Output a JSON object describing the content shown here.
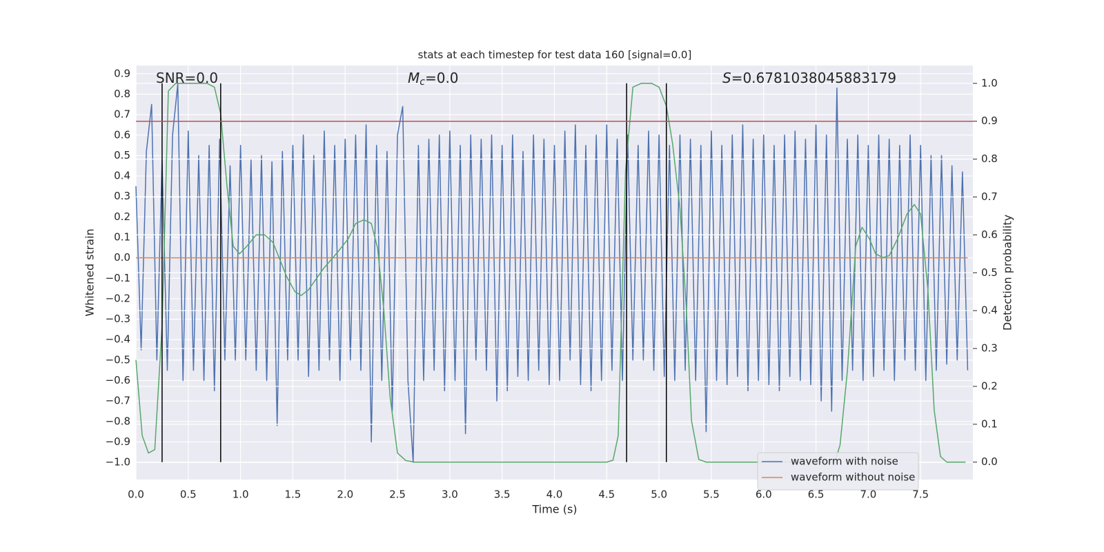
{
  "chart_data": {
    "type": "line",
    "title": "stats at each timestep for test data 160 [signal=0.0]",
    "xlabel": "Time (s)",
    "ylabel": "Whitened strain",
    "y2label": "Detection probability",
    "xlim": [
      0,
      8.0
    ],
    "ylim": [
      -1.084,
      0.94
    ],
    "y2lim": [
      -0.046,
      1.047
    ],
    "grid": true,
    "background": "#eaeaf2",
    "legend": "lower right",
    "xticks": [
      {
        "value": 0,
        "label": "0.0"
      },
      {
        "value": 0.5,
        "label": "0.5"
      },
      {
        "value": 1,
        "label": "1.0"
      },
      {
        "value": 1.5,
        "label": "1.5"
      },
      {
        "value": 2,
        "label": "2.0"
      },
      {
        "value": 2.5,
        "label": "2.5"
      },
      {
        "value": 3,
        "label": "3.0"
      },
      {
        "value": 3.5,
        "label": "3.5"
      },
      {
        "value": 4,
        "label": "4.0"
      },
      {
        "value": 4.5,
        "label": "4.5"
      },
      {
        "value": 5,
        "label": "5.0"
      },
      {
        "value": 5.5,
        "label": "5.5"
      },
      {
        "value": 6,
        "label": "6.0"
      },
      {
        "value": 6.5,
        "label": "6.5"
      },
      {
        "value": 7,
        "label": "7.0"
      },
      {
        "value": 7.5,
        "label": "7.5"
      }
    ],
    "yticks": [
      {
        "value": -1,
        "label": "−1.0"
      },
      {
        "value": -0.9,
        "label": "−0.9"
      },
      {
        "value": -0.8,
        "label": "−0.8"
      },
      {
        "value": -0.7,
        "label": "−0.7"
      },
      {
        "value": -0.6,
        "label": "−0.6"
      },
      {
        "value": -0.5,
        "label": "−0.5"
      },
      {
        "value": -0.4,
        "label": "−0.4"
      },
      {
        "value": -0.3,
        "label": "−0.3"
      },
      {
        "value": -0.2,
        "label": "−0.2"
      },
      {
        "value": -0.1,
        "label": "−0.1"
      },
      {
        "value": 0,
        "label": "0.0"
      },
      {
        "value": 0.1,
        "label": "0.1"
      },
      {
        "value": 0.2,
        "label": "0.2"
      },
      {
        "value": 0.3,
        "label": "0.3"
      },
      {
        "value": 0.4,
        "label": "0.4"
      },
      {
        "value": 0.5,
        "label": "0.5"
      },
      {
        "value": 0.6,
        "label": "0.6"
      },
      {
        "value": 0.7,
        "label": "0.7"
      },
      {
        "value": 0.8,
        "label": "0.8"
      },
      {
        "value": 0.9,
        "label": "0.9"
      }
    ],
    "y2ticks": [
      {
        "value": 0,
        "label": "0.0"
      },
      {
        "value": 0.1,
        "label": "0.1"
      },
      {
        "value": 0.2,
        "label": "0.2"
      },
      {
        "value": 0.3,
        "label": "0.3"
      },
      {
        "value": 0.4,
        "label": "0.4"
      },
      {
        "value": 0.5,
        "label": "0.5"
      },
      {
        "value": 0.6,
        "label": "0.6"
      },
      {
        "value": 0.7,
        "label": "0.7"
      },
      {
        "value": 0.8,
        "label": "0.8"
      },
      {
        "value": 0.9,
        "label": "0.9"
      },
      {
        "value": 1,
        "label": "1.0"
      }
    ],
    "series": [
      {
        "name": "waveform with noise",
        "color": "#4c72b0",
        "x": [
          0,
          0.05,
          0.1,
          0.15,
          0.2,
          0.25,
          0.3,
          0.35,
          0.4,
          0.45,
          0.5,
          0.55,
          0.6,
          0.65,
          0.7,
          0.75,
          0.8,
          0.85,
          0.9,
          0.95,
          1,
          1.05,
          1.1,
          1.15,
          1.2,
          1.25,
          1.3,
          1.35,
          1.4,
          1.45,
          1.5,
          1.55,
          1.6,
          1.65,
          1.7,
          1.75,
          1.8,
          1.85,
          1.9,
          1.95,
          2,
          2.05,
          2.1,
          2.15,
          2.2,
          2.25,
          2.3,
          2.35,
          2.4,
          2.45,
          2.5,
          2.55,
          2.6,
          2.65,
          2.7,
          2.75,
          2.8,
          2.85,
          2.9,
          2.95,
          3,
          3.05,
          3.1,
          3.15,
          3.2,
          3.25,
          3.3,
          3.35,
          3.4,
          3.45,
          3.5,
          3.55,
          3.6,
          3.65,
          3.7,
          3.75,
          3.8,
          3.85,
          3.9,
          3.95,
          4,
          4.05,
          4.1,
          4.15,
          4.2,
          4.25,
          4.3,
          4.35,
          4.4,
          4.45,
          4.5,
          4.55,
          4.6,
          4.65,
          4.7,
          4.75,
          4.8,
          4.85,
          4.9,
          4.95,
          5,
          5.05,
          5.1,
          5.15,
          5.2,
          5.25,
          5.3,
          5.35,
          5.4,
          5.45,
          5.5,
          5.55,
          5.6,
          5.65,
          5.7,
          5.75,
          5.8,
          5.85,
          5.9,
          5.95,
          6,
          6.05,
          6.1,
          6.15,
          6.2,
          6.25,
          6.3,
          6.35,
          6.4,
          6.45,
          6.5,
          6.55,
          6.6,
          6.65,
          6.7,
          6.75,
          6.8,
          6.85,
          6.9,
          6.95,
          7,
          7.05,
          7.1,
          7.15,
          7.2,
          7.25,
          7.3,
          7.35,
          7.4,
          7.45,
          7.5,
          7.55,
          7.6,
          7.65,
          7.7,
          7.75,
          7.8,
          7.85,
          7.9,
          7.95
        ],
        "values": [
          0.35,
          -0.45,
          0.52,
          0.75,
          -0.5,
          0.48,
          -0.55,
          0.6,
          0.85,
          -0.6,
          0.62,
          -0.55,
          0.5,
          -0.6,
          0.55,
          -0.65,
          0.58,
          -0.5,
          0.45,
          -0.5,
          0.55,
          -0.5,
          0.48,
          -0.55,
          0.5,
          -0.6,
          0.47,
          -0.82,
          0.52,
          -0.5,
          0.55,
          -0.5,
          0.6,
          -0.58,
          0.5,
          -0.55,
          0.62,
          -0.5,
          0.55,
          -0.6,
          0.58,
          -0.5,
          0.6,
          -0.55,
          0.65,
          -0.9,
          0.55,
          -0.6,
          0.52,
          -0.75,
          0.6,
          0.74,
          -0.6,
          -1.0,
          0.55,
          -0.6,
          0.58,
          -0.55,
          0.6,
          -0.65,
          0.62,
          -0.6,
          0.55,
          -0.86,
          0.6,
          -0.5,
          0.58,
          -0.55,
          0.6,
          -0.7,
          0.55,
          -0.65,
          0.6,
          -0.58,
          0.52,
          -0.6,
          0.6,
          -0.55,
          0.58,
          -0.62,
          0.55,
          -0.6,
          0.62,
          -0.5,
          0.65,
          -0.62,
          0.55,
          -0.65,
          0.6,
          -0.6,
          0.65,
          -0.55,
          0.58,
          -0.6,
          0.6,
          -0.5,
          0.55,
          -0.5,
          0.62,
          -0.55,
          0.6,
          -0.58,
          0.55,
          -0.6,
          0.6,
          -0.55,
          0.58,
          -0.6,
          0.55,
          -0.85,
          0.62,
          -0.6,
          0.55,
          -0.62,
          0.6,
          -0.58,
          0.65,
          -0.65,
          0.58,
          -0.6,
          0.6,
          -0.62,
          0.55,
          -0.65,
          0.6,
          -0.58,
          0.62,
          -0.6,
          0.58,
          -0.62,
          0.65,
          -0.7,
          0.6,
          -0.75,
          0.83,
          -0.6,
          0.58,
          -0.55,
          0.6,
          -0.6,
          0.55,
          -0.58,
          0.6,
          -0.55,
          0.58,
          -0.6,
          0.55,
          -0.5,
          0.6,
          -0.55,
          0.55,
          -0.6,
          0.5,
          -0.55,
          0.5,
          -0.52,
          0.45,
          -0.5,
          0.42,
          -0.55
        ]
      },
      {
        "name": "waveform without noise",
        "color": "#dd8452",
        "x": [
          0,
          7.95
        ],
        "values": [
          0,
          0
        ]
      },
      {
        "color": "#55a868",
        "axis": "y2",
        "x": [
          0,
          0.06,
          0.12,
          0.18,
          0.25,
          0.31,
          0.38,
          0.68,
          0.75,
          0.81,
          0.87,
          0.93,
          0.99,
          1.06,
          1.15,
          1.23,
          1.31,
          1.44,
          1.52,
          1.58,
          1.65,
          1.79,
          1.93,
          2.03,
          2.1,
          2.18,
          2.25,
          2.31,
          2.37,
          2.43,
          2.5,
          2.58,
          2.66,
          4.5,
          4.56,
          4.61,
          4.68,
          4.75,
          4.83,
          4.93,
          5.0,
          5.07,
          5.13,
          5.2,
          5.26,
          5.31,
          5.38,
          5.45,
          6.68,
          6.73,
          6.8,
          6.88,
          6.94,
          7.01,
          7.07,
          7.14,
          7.2,
          7.28,
          7.37,
          7.44,
          7.5,
          7.57,
          7.63,
          7.69,
          7.75,
          7.93
        ],
        "values": [
          0.27,
          0.07,
          0.024,
          0.033,
          0.36,
          0.98,
          1.0,
          1.0,
          0.99,
          0.92,
          0.73,
          0.57,
          0.55,
          0.57,
          0.6,
          0.6,
          0.58,
          0.49,
          0.45,
          0.44,
          0.455,
          0.51,
          0.555,
          0.59,
          0.63,
          0.64,
          0.63,
          0.565,
          0.4,
          0.17,
          0.024,
          0.004,
          0,
          0,
          0.005,
          0.07,
          0.77,
          0.99,
          1.0,
          1.0,
          0.99,
          0.94,
          0.84,
          0.67,
          0.41,
          0.11,
          0.007,
          0,
          0,
          0.045,
          0.24,
          0.57,
          0.62,
          0.59,
          0.55,
          0.54,
          0.545,
          0.59,
          0.655,
          0.68,
          0.655,
          0.455,
          0.137,
          0.015,
          0,
          0
        ]
      }
    ],
    "hlines": [
      {
        "value": 0.9,
        "axis": "y2",
        "color": "#c44e52"
      }
    ],
    "vlines": {
      "values": [
        0.25,
        0.81,
        4.69,
        5.07
      ],
      "axis": "y2",
      "ymin": 0,
      "ymax": 1,
      "color": "#000000"
    },
    "annotations": [
      {
        "text": "SNR=0.0"
      },
      {
        "symbol": "M",
        "subscript": "c",
        "text": "=0.0"
      },
      {
        "symbol": "S",
        "text": "=0.6781038045883179"
      }
    ]
  }
}
